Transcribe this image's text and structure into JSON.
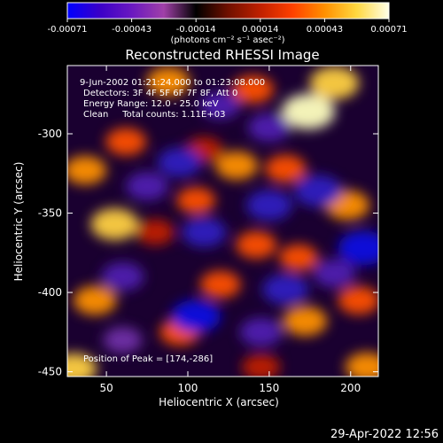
{
  "chart_data": {
    "type": "heatmap",
    "title": "Reconstructed RHESSI Image",
    "xlabel": "Heliocentric X (arcsec)",
    "ylabel": "Heliocentric Y (arcsec)",
    "xlim": [
      26,
      217
    ],
    "ylim": [
      -453,
      -257
    ],
    "x_ticks": [
      50,
      100,
      150,
      200
    ],
    "y_ticks": [
      -300,
      -350,
      -400,
      -450
    ],
    "colorbar": {
      "label": "(photons cm⁻² s⁻¹ asec⁻²)",
      "range": [
        -0.00071,
        0.00071
      ],
      "ticks": [
        "-0.00071",
        "-0.00043",
        "-0.00014",
        "0.00014",
        "0.00043",
        "0.00071"
      ],
      "colors": [
        "#0000ff",
        "#3a00c8",
        "#6a18c0",
        "#a040a8",
        "#000000",
        "#701000",
        "#c02000",
        "#ff4000",
        "#ff9000",
        "#ffd840",
        "#ffffe8"
      ]
    },
    "annotations": [
      "9-Jun-2002 01:21:24.000 to 01:23:08.000",
      "Detectors: 3F 4F 5F 6F 7F 8F, Att 0",
      "Energy Range: 12.0 - 25.0 keV",
      "Clean     Total counts: 1.11E+03"
    ],
    "peak_label": "Position of Peak = [174,-286]",
    "peak": [
      174,
      -286
    ],
    "blobs": [
      {
        "x": 174,
        "y": -286,
        "value": 0.00071
      },
      {
        "x": 190,
        "y": -268,
        "value": 0.0006
      },
      {
        "x": 55,
        "y": -357,
        "value": 0.00055
      },
      {
        "x": 88,
        "y": -267,
        "value": 0.00042
      },
      {
        "x": 140,
        "y": -272,
        "value": 0.00038
      },
      {
        "x": 37,
        "y": -323,
        "value": 0.0004
      },
      {
        "x": 62,
        "y": -305,
        "value": 0.00035
      },
      {
        "x": 130,
        "y": -320,
        "value": 0.0004
      },
      {
        "x": 160,
        "y": -322,
        "value": 0.00036
      },
      {
        "x": 105,
        "y": -342,
        "value": 0.0003
      },
      {
        "x": 198,
        "y": -345,
        "value": 0.00045
      },
      {
        "x": 80,
        "y": -362,
        "value": 0.00028
      },
      {
        "x": 142,
        "y": -370,
        "value": 0.00035
      },
      {
        "x": 168,
        "y": -378,
        "value": 0.0003
      },
      {
        "x": 43,
        "y": -405,
        "value": 0.00042
      },
      {
        "x": 120,
        "y": -395,
        "value": 0.00035
      },
      {
        "x": 172,
        "y": -418,
        "value": 0.00045
      },
      {
        "x": 205,
        "y": -405,
        "value": 0.00038
      },
      {
        "x": 95,
        "y": -425,
        "value": 0.00033
      },
      {
        "x": 30,
        "y": -448,
        "value": 0.0005
      },
      {
        "x": 210,
        "y": -447,
        "value": 0.00042
      },
      {
        "x": 145,
        "y": -447,
        "value": 0.00028
      },
      {
        "x": 110,
        "y": -310,
        "value": 0.00025
      },
      {
        "x": 120,
        "y": -282,
        "value": -0.00035
      },
      {
        "x": 95,
        "y": -318,
        "value": -0.00045
      },
      {
        "x": 150,
        "y": -296,
        "value": -0.0004
      },
      {
        "x": 75,
        "y": -333,
        "value": -0.0004
      },
      {
        "x": 150,
        "y": -345,
        "value": -0.0005
      },
      {
        "x": 180,
        "y": -336,
        "value": -0.00055
      },
      {
        "x": 110,
        "y": -362,
        "value": -0.00045
      },
      {
        "x": 208,
        "y": -372,
        "value": -0.00065
      },
      {
        "x": 60,
        "y": -390,
        "value": -0.0004
      },
      {
        "x": 105,
        "y": -415,
        "value": -0.0006
      },
      {
        "x": 160,
        "y": -398,
        "value": -0.0005
      },
      {
        "x": 145,
        "y": -425,
        "value": -0.0004
      },
      {
        "x": 60,
        "y": -430,
        "value": -0.0003
      },
      {
        "x": 190,
        "y": -388,
        "value": -0.0004
      }
    ]
  },
  "footer": {
    "timestamp": "29-Apr-2022 12:56"
  }
}
